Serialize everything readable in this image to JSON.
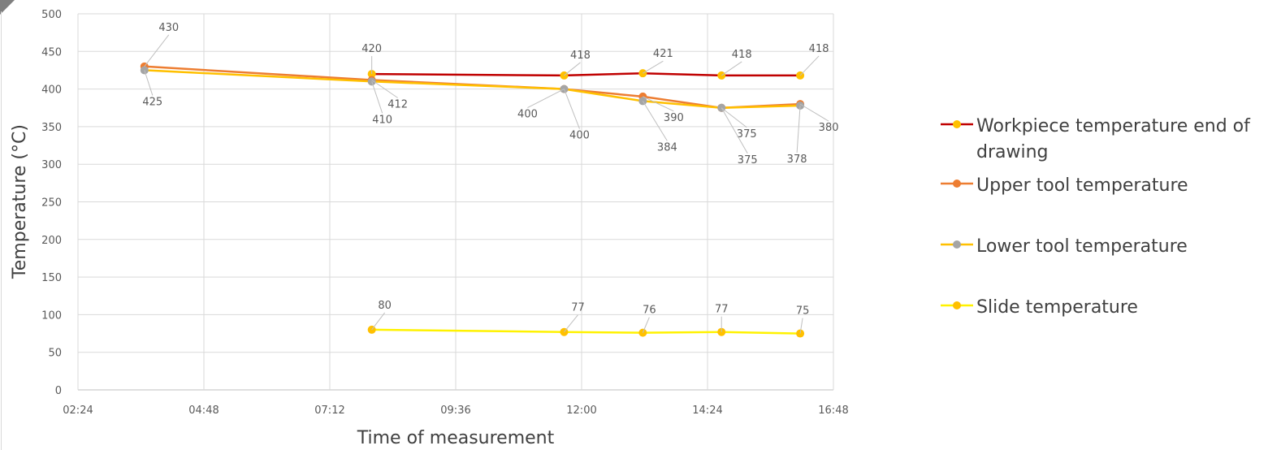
{
  "chart_data": {
    "type": "line",
    "xlabel": "Time of measurement",
    "ylabel": "Temperature (°C)",
    "ylim": [
      0,
      500
    ],
    "yticks": [
      0,
      50,
      100,
      150,
      200,
      250,
      300,
      350,
      400,
      450,
      500
    ],
    "xlim": [
      "02:24",
      "16:48"
    ],
    "xticks": [
      "02:24",
      "04:48",
      "07:12",
      "09:36",
      "12:00",
      "14:24",
      "16:48"
    ],
    "grid": true,
    "legend_position": "right",
    "series": [
      {
        "name": "Workpiece temperature end of drawing",
        "name_lines": [
          "Workpiece temperature end of",
          "drawing"
        ],
        "line_color": "#C00000",
        "marker_color": "#FFC000",
        "points": [
          {
            "x": "08:00",
            "y": 420,
            "label": "420"
          },
          {
            "x": "11:40",
            "y": 418,
            "label": "418"
          },
          {
            "x": "13:10",
            "y": 421,
            "label": "421"
          },
          {
            "x": "14:40",
            "y": 418,
            "label": "418"
          },
          {
            "x": "16:10",
            "y": 418,
            "label": "418"
          }
        ]
      },
      {
        "name": "Upper tool temperature",
        "name_lines": [
          "Upper tool temperature"
        ],
        "line_color": "#ED7D31",
        "marker_color": "#ED7D31",
        "points": [
          {
            "x": "03:40",
            "y": 430,
            "label": "430"
          },
          {
            "x": "08:00",
            "y": 412,
            "label": "412"
          },
          {
            "x": "11:40",
            "y": 400,
            "label": "400"
          },
          {
            "x": "13:10",
            "y": 390,
            "label": "390"
          },
          {
            "x": "14:40",
            "y": 375,
            "label": "375"
          },
          {
            "x": "16:10",
            "y": 380,
            "label": "380"
          }
        ]
      },
      {
        "name": "Lower tool temperature",
        "name_lines": [
          "Lower tool temperature"
        ],
        "line_color": "#FFC000",
        "marker_color": "#A5A5A5",
        "points": [
          {
            "x": "03:40",
            "y": 425,
            "label": "425"
          },
          {
            "x": "08:00",
            "y": 410,
            "label": "410"
          },
          {
            "x": "11:40",
            "y": 400,
            "label": "400"
          },
          {
            "x": "13:10",
            "y": 384,
            "label": "384"
          },
          {
            "x": "14:40",
            "y": 375,
            "label": "375"
          },
          {
            "x": "16:10",
            "y": 378,
            "label": "378"
          }
        ]
      },
      {
        "name": "Slide temperature",
        "name_lines": [
          "Slide temperature"
        ],
        "line_color": "#FFF200",
        "marker_color": "#FFC000",
        "points": [
          {
            "x": "08:00",
            "y": 80,
            "label": "80"
          },
          {
            "x": "11:40",
            "y": 77,
            "label": "77"
          },
          {
            "x": "13:10",
            "y": 76,
            "label": "76"
          },
          {
            "x": "14:40",
            "y": 77,
            "label": "77"
          },
          {
            "x": "16:10",
            "y": 75,
            "label": "75"
          }
        ]
      }
    ]
  }
}
